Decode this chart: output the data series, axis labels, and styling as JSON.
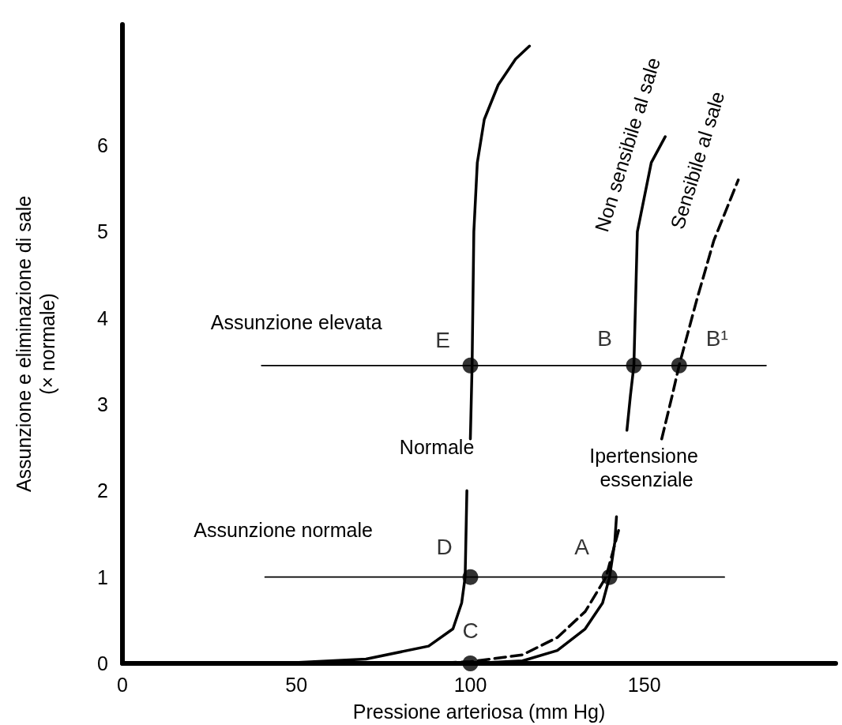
{
  "chart_data": {
    "type": "line",
    "xlabel": "Pressione arteriosa (mm Hg)",
    "ylabel": "Assunzione e eliminazione di sale\n(× normale)",
    "xlim": [
      0,
      205
    ],
    "xticks": [
      0,
      50,
      100,
      150
    ],
    "ylim": [
      0,
      7.4
    ],
    "yticks": [
      0,
      1,
      2,
      3,
      4,
      5,
      6
    ],
    "grid": false,
    "marker": "none",
    "series": [
      {
        "name": "Normale",
        "color": "#000000",
        "line_style": "solid",
        "x": [
          45,
          70,
          88,
          95,
          97.5,
          98.5,
          99,
          99.3,
          100,
          100.5,
          101,
          102,
          104,
          108,
          113,
          117
        ],
        "values": [
          0,
          0.05,
          0.2,
          0.4,
          0.7,
          1,
          2,
          null,
          2.6,
          3.45,
          5,
          5.8,
          6.3,
          6.7,
          7.0,
          7.15
        ]
      },
      {
        "name": "Non sensibile al sale",
        "color": "#000000",
        "line_style": "solid",
        "x": [
          100,
          115,
          125,
          133,
          138,
          140,
          141.5,
          142,
          143,
          145,
          146,
          147,
          148,
          152,
          156
        ],
        "values": [
          0,
          0.03,
          0.15,
          0.4,
          0.7,
          1,
          1.4,
          1.7,
          null,
          2.7,
          3.1,
          3.45,
          5,
          5.8,
          6.1
        ]
      },
      {
        "name": "Sensibile al sale",
        "color": "#000000",
        "line_style": "dashed",
        "x": [
          88,
          100,
          115,
          125,
          133,
          139,
          141,
          143,
          150,
          155,
          158,
          160,
          165,
          170,
          177
        ],
        "values": [
          0,
          0.02,
          0.1,
          0.3,
          0.6,
          1,
          1.3,
          1.6,
          null,
          2.6,
          3.1,
          3.45,
          4.2,
          4.9,
          5.6
        ]
      },
      {
        "name": "Assunzione elevata",
        "color": "#000000",
        "line_style": "solid",
        "x": [
          40,
          185
        ],
        "values": [
          3.45,
          3.45
        ]
      },
      {
        "name": "Assunzione normale",
        "color": "#000000",
        "line_style": "solid",
        "x": [
          41,
          173
        ],
        "values": [
          1,
          1
        ]
      },
      {
        "type": "scatter",
        "marker": "circle",
        "color": "#000000",
        "x": [
          100,
          140,
          100,
          147,
          160,
          100
        ],
        "values": [
          1,
          1,
          3.45,
          3.45,
          3.45,
          0
        ],
        "value_labels": [
          "D",
          "A",
          "E",
          "B",
          "B¹",
          "C"
        ]
      }
    ],
    "annotations": [
      "Ipertensione essenziale"
    ]
  }
}
